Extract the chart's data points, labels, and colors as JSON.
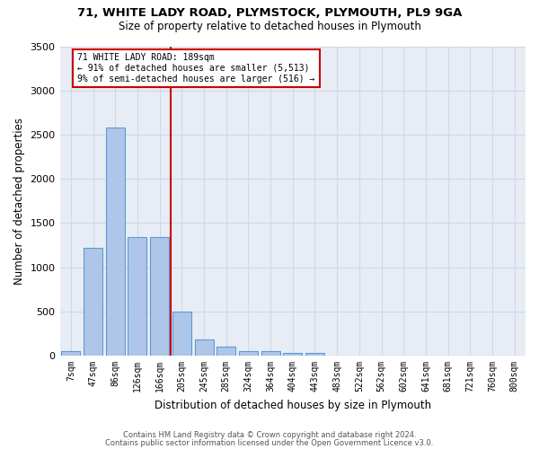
{
  "title1": "71, WHITE LADY ROAD, PLYMSTOCK, PLYMOUTH, PL9 9GA",
  "title2": "Size of property relative to detached houses in Plymouth",
  "xlabel": "Distribution of detached houses by size in Plymouth",
  "ylabel": "Number of detached properties",
  "categories": [
    "7sqm",
    "47sqm",
    "86sqm",
    "126sqm",
    "166sqm",
    "205sqm",
    "245sqm",
    "285sqm",
    "324sqm",
    "364sqm",
    "404sqm",
    "443sqm",
    "483sqm",
    "522sqm",
    "562sqm",
    "602sqm",
    "641sqm",
    "681sqm",
    "721sqm",
    "760sqm",
    "800sqm"
  ],
  "values": [
    55,
    1220,
    2580,
    1340,
    1340,
    500,
    185,
    105,
    55,
    55,
    30,
    30,
    0,
    0,
    0,
    0,
    0,
    0,
    0,
    0,
    0
  ],
  "bar_color": "#aec6e8",
  "bar_edge_color": "#5b9bd5",
  "vline_color": "#cc0000",
  "annotation_text": "71 WHITE LADY ROAD: 189sqm\n← 91% of detached houses are smaller (5,513)\n9% of semi-detached houses are larger (516) →",
  "annotation_box_color": "#cc0000",
  "annotation_text_color": "#000000",
  "ylim": [
    0,
    3500
  ],
  "yticks": [
    0,
    500,
    1000,
    1500,
    2000,
    2500,
    3000,
    3500
  ],
  "grid_color": "#d0d8e8",
  "bg_color": "#e8edf5",
  "fig_bg_color": "#ffffff",
  "footer1": "Contains HM Land Registry data © Crown copyright and database right 2024.",
  "footer2": "Contains public sector information licensed under the Open Government Licence v3.0."
}
